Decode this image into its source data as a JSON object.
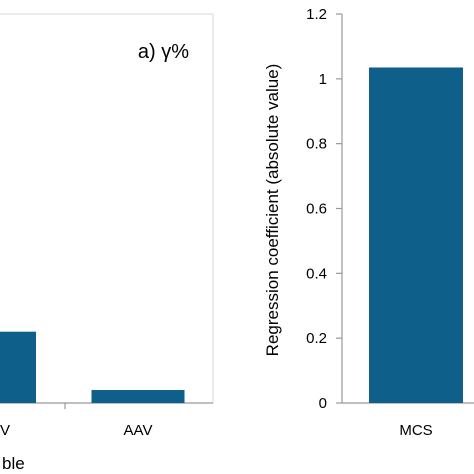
{
  "chart_data": [
    {
      "type": "bar",
      "panel_label": "a) γ%",
      "categories": [
        "V",
        "AAV"
      ],
      "values": [
        0.22,
        0.04
      ],
      "xlabel": "ble",
      "ylabel": "",
      "bar_color": "#0e5f8a",
      "grid": false
    },
    {
      "type": "bar",
      "categories": [
        "MCS"
      ],
      "values": [
        1.035
      ],
      "ylabel": "Regression coefficient (absolute value)",
      "ylim": [
        0,
        1.2
      ],
      "yticks": [
        "0",
        "0.2",
        "0.4",
        "0.6",
        "0.8",
        "1",
        "1.2"
      ],
      "bar_color": "#0e5f8a",
      "grid": false
    }
  ]
}
